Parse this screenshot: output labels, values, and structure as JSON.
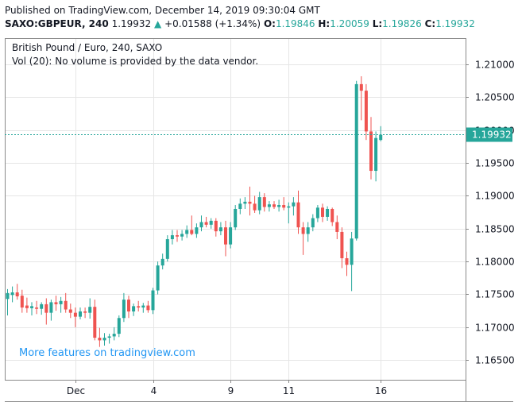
{
  "header": {
    "published": "Published on TradingView.com, December 14, 2019 09:30:04 GMT",
    "symbol": "SAXO:GBPEUR, 240",
    "last": "1.19932",
    "change_arrow": "▲",
    "change": "+0.01588 (+1.34%)",
    "o_label": "O:",
    "o_value": "1.19846",
    "h_label": "H:",
    "h_value": "1.20059",
    "l_label": "L:",
    "l_value": "1.19826",
    "c_label": "C:",
    "c_value": "1.19932"
  },
  "legend": {
    "title": "British Pound / Euro, 240, SAXO",
    "volume_note": "Vol (20): No volume is provided by the data vendor."
  },
  "promo": "More features on tradingview.com",
  "colors": {
    "up": "#26a69a",
    "down": "#ef5350",
    "grid": "#e6e6e6",
    "axis": "#8a8a8a",
    "price_line": "#26a69a",
    "promo": "#2196f3",
    "price_badge": "#26a69a"
  },
  "chart_data": {
    "type": "candlestick",
    "ylim": [
      1.162,
      1.214
    ],
    "yticks": [
      1.165,
      1.17,
      1.175,
      1.18,
      1.185,
      1.19,
      1.195,
      1.2,
      1.205,
      1.21
    ],
    "ytick_labels": [
      "1.16500",
      "1.17000",
      "1.17500",
      "1.18000",
      "1.18500",
      "1.19000",
      "1.19500",
      "1.20000",
      "1.20500",
      "1.21000"
    ],
    "xtick_labels": [
      "Dec",
      "4",
      "9",
      "11",
      "16"
    ],
    "xtick_positions": [
      14,
      30,
      46,
      58,
      77
    ],
    "x_count": 84,
    "current_price": 1.19932,
    "current_price_label": "1.19932",
    "candles": [
      {
        "o": 1.1743,
        "h": 1.1758,
        "l": 1.1718,
        "c": 1.1752
      },
      {
        "o": 1.1749,
        "h": 1.1762,
        "l": 1.1738,
        "c": 1.1753
      },
      {
        "o": 1.1753,
        "h": 1.1766,
        "l": 1.1742,
        "c": 1.1747
      },
      {
        "o": 1.1748,
        "h": 1.1757,
        "l": 1.1722,
        "c": 1.173
      },
      {
        "o": 1.1733,
        "h": 1.1745,
        "l": 1.1722,
        "c": 1.1729
      },
      {
        "o": 1.1729,
        "h": 1.1738,
        "l": 1.1718,
        "c": 1.1732
      },
      {
        "o": 1.173,
        "h": 1.174,
        "l": 1.172,
        "c": 1.1728
      },
      {
        "o": 1.1728,
        "h": 1.1738,
        "l": 1.1719,
        "c": 1.1735
      },
      {
        "o": 1.1735,
        "h": 1.1744,
        "l": 1.1704,
        "c": 1.1722
      },
      {
        "o": 1.1722,
        "h": 1.1742,
        "l": 1.171,
        "c": 1.1738
      },
      {
        "o": 1.1738,
        "h": 1.1748,
        "l": 1.1725,
        "c": 1.1735
      },
      {
        "o": 1.1735,
        "h": 1.1746,
        "l": 1.1722,
        "c": 1.174
      },
      {
        "o": 1.174,
        "h": 1.1752,
        "l": 1.1722,
        "c": 1.1727
      },
      {
        "o": 1.1727,
        "h": 1.1736,
        "l": 1.1714,
        "c": 1.1722
      },
      {
        "o": 1.1722,
        "h": 1.173,
        "l": 1.17,
        "c": 1.1716
      },
      {
        "o": 1.1716,
        "h": 1.173,
        "l": 1.1712,
        "c": 1.1724
      },
      {
        "o": 1.1724,
        "h": 1.173,
        "l": 1.1714,
        "c": 1.1722
      },
      {
        "o": 1.1722,
        "h": 1.1744,
        "l": 1.1713,
        "c": 1.1731
      },
      {
        "o": 1.1731,
        "h": 1.1742,
        "l": 1.168,
        "c": 1.1684
      },
      {
        "o": 1.1684,
        "h": 1.1699,
        "l": 1.167,
        "c": 1.168
      },
      {
        "o": 1.168,
        "h": 1.1691,
        "l": 1.1672,
        "c": 1.1684
      },
      {
        "o": 1.1684,
        "h": 1.169,
        "l": 1.1675,
        "c": 1.1686
      },
      {
        "o": 1.1686,
        "h": 1.17,
        "l": 1.168,
        "c": 1.169
      },
      {
        "o": 1.169,
        "h": 1.1718,
        "l": 1.1685,
        "c": 1.1714
      },
      {
        "o": 1.1714,
        "h": 1.1752,
        "l": 1.1708,
        "c": 1.1742
      },
      {
        "o": 1.1742,
        "h": 1.1748,
        "l": 1.1714,
        "c": 1.1724
      },
      {
        "o": 1.1724,
        "h": 1.1736,
        "l": 1.1717,
        "c": 1.1732
      },
      {
        "o": 1.1732,
        "h": 1.174,
        "l": 1.1724,
        "c": 1.173
      },
      {
        "o": 1.173,
        "h": 1.1737,
        "l": 1.1722,
        "c": 1.1733
      },
      {
        "o": 1.1733,
        "h": 1.174,
        "l": 1.1722,
        "c": 1.1726
      },
      {
        "o": 1.1726,
        "h": 1.176,
        "l": 1.172,
        "c": 1.1756
      },
      {
        "o": 1.1756,
        "h": 1.18,
        "l": 1.175,
        "c": 1.1794
      },
      {
        "o": 1.1794,
        "h": 1.1812,
        "l": 1.1788,
        "c": 1.1804
      },
      {
        "o": 1.1804,
        "h": 1.184,
        "l": 1.18,
        "c": 1.1834
      },
      {
        "o": 1.1834,
        "h": 1.1848,
        "l": 1.1826,
        "c": 1.184
      },
      {
        "o": 1.184,
        "h": 1.1848,
        "l": 1.183,
        "c": 1.1838
      },
      {
        "o": 1.1838,
        "h": 1.1848,
        "l": 1.1832,
        "c": 1.1842
      },
      {
        "o": 1.1842,
        "h": 1.1855,
        "l": 1.1836,
        "c": 1.1848
      },
      {
        "o": 1.1848,
        "h": 1.187,
        "l": 1.184,
        "c": 1.1842
      },
      {
        "o": 1.1842,
        "h": 1.1858,
        "l": 1.1836,
        "c": 1.1852
      },
      {
        "o": 1.1852,
        "h": 1.187,
        "l": 1.1846,
        "c": 1.186
      },
      {
        "o": 1.186,
        "h": 1.1868,
        "l": 1.1852,
        "c": 1.1856
      },
      {
        "o": 1.1856,
        "h": 1.1866,
        "l": 1.185,
        "c": 1.1862
      },
      {
        "o": 1.1862,
        "h": 1.1866,
        "l": 1.1838,
        "c": 1.1846
      },
      {
        "o": 1.1846,
        "h": 1.186,
        "l": 1.184,
        "c": 1.1852
      },
      {
        "o": 1.1852,
        "h": 1.1862,
        "l": 1.1808,
        "c": 1.1826
      },
      {
        "o": 1.1826,
        "h": 1.186,
        "l": 1.182,
        "c": 1.1852
      },
      {
        "o": 1.1852,
        "h": 1.1886,
        "l": 1.1848,
        "c": 1.188
      },
      {
        "o": 1.188,
        "h": 1.1896,
        "l": 1.1872,
        "c": 1.1888
      },
      {
        "o": 1.1888,
        "h": 1.1898,
        "l": 1.188,
        "c": 1.1891
      },
      {
        "o": 1.1891,
        "h": 1.1914,
        "l": 1.187,
        "c": 1.1888
      },
      {
        "o": 1.1888,
        "h": 1.19,
        "l": 1.1874,
        "c": 1.1878
      },
      {
        "o": 1.1878,
        "h": 1.1906,
        "l": 1.1872,
        "c": 1.1898
      },
      {
        "o": 1.1898,
        "h": 1.1904,
        "l": 1.1876,
        "c": 1.1883
      },
      {
        "o": 1.1883,
        "h": 1.1892,
        "l": 1.1876,
        "c": 1.1887
      },
      {
        "o": 1.1887,
        "h": 1.1892,
        "l": 1.188,
        "c": 1.1883
      },
      {
        "o": 1.1883,
        "h": 1.1894,
        "l": 1.1876,
        "c": 1.1886
      },
      {
        "o": 1.1886,
        "h": 1.1898,
        "l": 1.1878,
        "c": 1.1882
      },
      {
        "o": 1.1882,
        "h": 1.189,
        "l": 1.1858,
        "c": 1.1884
      },
      {
        "o": 1.1884,
        "h": 1.1898,
        "l": 1.187,
        "c": 1.189
      },
      {
        "o": 1.189,
        "h": 1.1908,
        "l": 1.1842,
        "c": 1.1852
      },
      {
        "o": 1.1852,
        "h": 1.186,
        "l": 1.181,
        "c": 1.1842
      },
      {
        "o": 1.1842,
        "h": 1.186,
        "l": 1.183,
        "c": 1.1852
      },
      {
        "o": 1.1852,
        "h": 1.1872,
        "l": 1.1846,
        "c": 1.1866
      },
      {
        "o": 1.1866,
        "h": 1.1886,
        "l": 1.186,
        "c": 1.1882
      },
      {
        "o": 1.1882,
        "h": 1.1888,
        "l": 1.186,
        "c": 1.1868
      },
      {
        "o": 1.1868,
        "h": 1.1884,
        "l": 1.1862,
        "c": 1.188
      },
      {
        "o": 1.188,
        "h": 1.1882,
        "l": 1.1854,
        "c": 1.186
      },
      {
        "o": 1.186,
        "h": 1.187,
        "l": 1.1834,
        "c": 1.1845
      },
      {
        "o": 1.1845,
        "h": 1.1852,
        "l": 1.179,
        "c": 1.1805
      },
      {
        "o": 1.1805,
        "h": 1.1815,
        "l": 1.1778,
        "c": 1.1795
      },
      {
        "o": 1.1795,
        "h": 1.1845,
        "l": 1.1755,
        "c": 1.1835
      },
      {
        "o": 1.1835,
        "h": 1.2075,
        "l": 1.1832,
        "c": 1.207
      },
      {
        "o": 1.207,
        "h": 1.2082,
        "l": 1.2015,
        "c": 1.206
      },
      {
        "o": 1.206,
        "h": 1.207,
        "l": 1.1985,
        "c": 1.1998
      },
      {
        "o": 1.1998,
        "h": 1.202,
        "l": 1.1925,
        "c": 1.1938
      },
      {
        "o": 1.1938,
        "h": 1.1998,
        "l": 1.1922,
        "c": 1.1988
      },
      {
        "o": 1.1985,
        "h": 1.2006,
        "l": 1.1983,
        "c": 1.1993
      }
    ]
  }
}
